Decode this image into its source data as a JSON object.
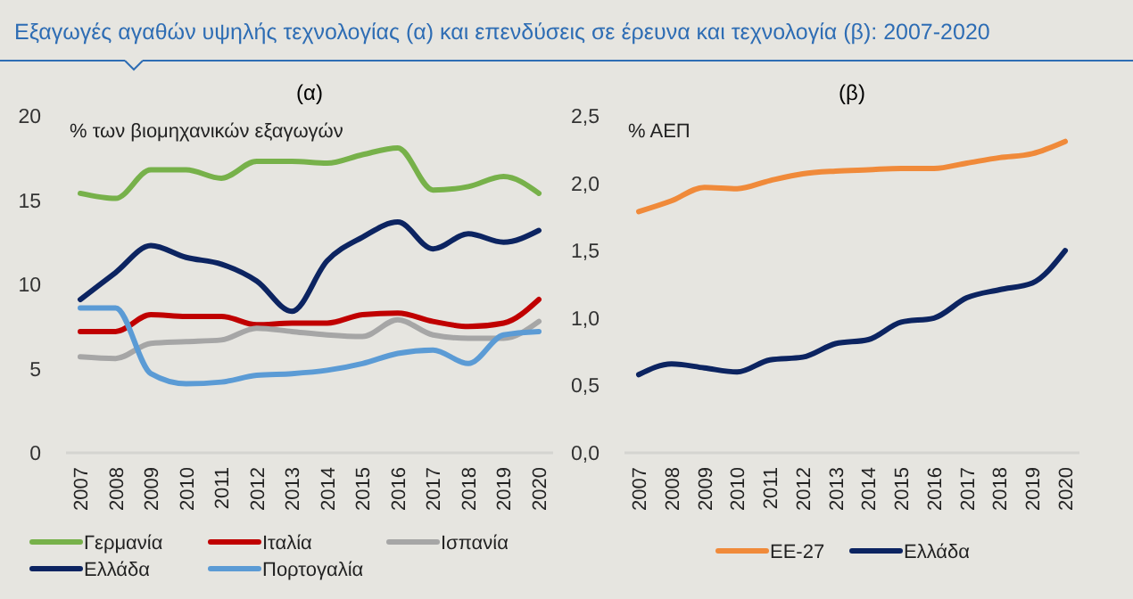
{
  "chart_data": [
    {
      "type": "line",
      "title": "Εξαγωγές αγαθών υψηλής τεχνολογίας (α) και επενδύσεις σε έρευνα και τεχνολογία (β): 2007-2020",
      "subtitle": "(α)",
      "ylabel": "% των βιομηχανικών εξαγωγών",
      "categories": [
        "2007",
        "2008",
        "2009",
        "2010",
        "2011",
        "2012",
        "2013",
        "2014",
        "2015",
        "2016",
        "2017",
        "2018",
        "2019",
        "2020"
      ],
      "ylim": [
        0,
        20
      ],
      "yticks": [
        0,
        5,
        10,
        15,
        20
      ],
      "grid": false,
      "legend": "bottom",
      "series": [
        {
          "name": "Γερμανία",
          "color": "#77b14a",
          "values": [
            15.4,
            15.1,
            16.8,
            16.8,
            16.3,
            17.3,
            17.3,
            17.2,
            17.7,
            18.1,
            15.6,
            15.8,
            16.4,
            15.4
          ]
        },
        {
          "name": "Ιταλία",
          "color": "#c00000",
          "values": [
            7.2,
            7.2,
            8.2,
            8.1,
            8.1,
            7.6,
            7.7,
            7.7,
            8.2,
            8.3,
            7.8,
            7.5,
            7.7,
            9.1
          ]
        },
        {
          "name": "Ισπανία",
          "color": "#a6a6a6",
          "values": [
            5.7,
            5.6,
            6.5,
            6.6,
            6.7,
            7.4,
            7.2,
            7.0,
            6.9,
            7.9,
            7.0,
            6.8,
            6.8,
            7.8
          ]
        },
        {
          "name": "Ελλάδα",
          "color": "#0c2461",
          "values": [
            9.1,
            10.7,
            12.3,
            11.6,
            11.2,
            10.2,
            8.4,
            11.4,
            12.8,
            13.7,
            12.1,
            13.0,
            12.5,
            13.2
          ]
        },
        {
          "name": "Πορτογαλία",
          "color": "#5b9bd5",
          "values": [
            8.6,
            8.6,
            4.7,
            4.1,
            4.2,
            4.6,
            4.7,
            4.9,
            5.3,
            5.9,
            6.1,
            5.3,
            7.0,
            7.2
          ]
        }
      ]
    },
    {
      "type": "line",
      "subtitle": "(β)",
      "ylabel": "% ΑΕΠ",
      "categories": [
        "2007",
        "2008",
        "2009",
        "2010",
        "2011",
        "2012",
        "2013",
        "2014",
        "2015",
        "2016",
        "2017",
        "2018",
        "2019",
        "2020"
      ],
      "ylim": [
        0,
        2.5
      ],
      "yticks": [
        {
          "value": 0,
          "label": "0,0"
        },
        {
          "value": 0.5,
          "label": "0,5"
        },
        {
          "value": 1,
          "label": "1,0"
        },
        {
          "value": 1.5,
          "label": "1,5"
        },
        {
          "value": 2,
          "label": "2,0"
        },
        {
          "value": 2.5,
          "label": "2,5"
        }
      ],
      "grid": false,
      "legend": "bottom",
      "series": [
        {
          "name": "ΕΕ-27",
          "color": "#f08a3a",
          "values": [
            1.79,
            1.87,
            1.97,
            1.96,
            2.02,
            2.07,
            2.09,
            2.1,
            2.11,
            2.11,
            2.15,
            2.19,
            2.22,
            2.31
          ]
        },
        {
          "name": "Ελλάδα",
          "color": "#0c2461",
          "values": [
            0.58,
            0.66,
            0.63,
            0.6,
            0.69,
            0.71,
            0.81,
            0.84,
            0.97,
            1.0,
            1.15,
            1.21,
            1.26,
            1.5
          ]
        }
      ]
    }
  ]
}
